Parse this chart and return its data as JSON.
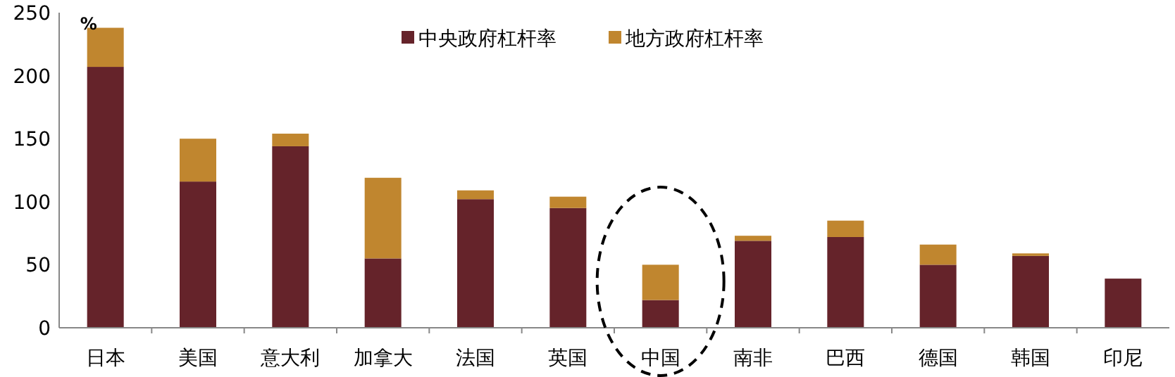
{
  "chart_data": {
    "type": "bar",
    "stacked": true,
    "ylabel": "%",
    "categories": [
      "日本",
      "美国",
      "意大利",
      "加拿大",
      "法国",
      "英国",
      "中国",
      "南非",
      "巴西",
      "德国",
      "韩国",
      "印尼"
    ],
    "series": [
      {
        "name": "中央政府杠杆率",
        "color": "#65232a",
        "values": [
          207,
          116,
          144,
          55,
          102,
          95,
          22,
          69,
          72,
          50,
          57,
          39
        ]
      },
      {
        "name": "地方政府杠杆率",
        "color": "#c0862f",
        "values": [
          31,
          34,
          10,
          64,
          7,
          9,
          28,
          4,
          13,
          16,
          2,
          0
        ]
      }
    ],
    "ylim": [
      0,
      250
    ],
    "yticks": [
      0,
      50,
      100,
      150,
      200,
      250
    ],
    "grid": false,
    "legend": "top right"
  }
}
